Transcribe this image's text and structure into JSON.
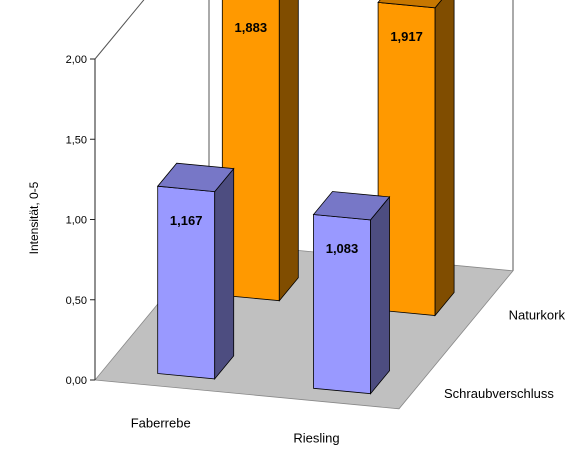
{
  "chart_data": {
    "type": "bar",
    "subtype": "3d-column",
    "categories": [
      "Faberrebe",
      "Riesling"
    ],
    "series": [
      {
        "name": "Schraubverschluss",
        "values": [
          1.167,
          1.083
        ],
        "color": "#9999ff"
      },
      {
        "name": "Naturkork",
        "values": [
          1.883,
          1.917
        ],
        "color": "#ff9900"
      }
    ],
    "data_labels": [
      "1,167",
      "1,083",
      "1,883",
      "1,917"
    ],
    "ylabel": "Intensität, 0-5",
    "xlabel": "",
    "ylim": [
      0,
      2
    ],
    "yticks": [
      "0,00",
      "0,50",
      "1,00",
      "1,50",
      "2,00"
    ],
    "grid": false,
    "legend": "series names on depth axis, right",
    "floor_color": "#c0c0c0"
  }
}
